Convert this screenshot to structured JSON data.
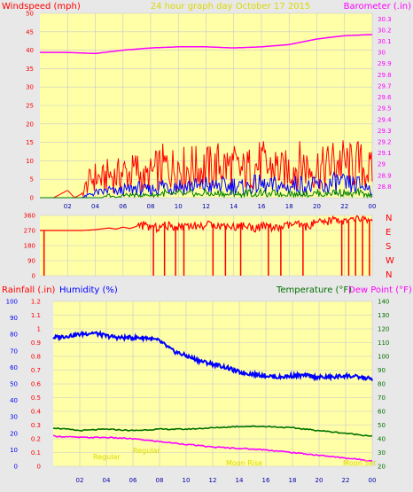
{
  "header": {
    "windspeed_label": "Windspeed (mph)",
    "title": "24 hour graph day   October 17 2015",
    "barometer_label": "Barometer (.in)"
  },
  "colors": {
    "background": "#e8e8e8",
    "plot_bg": "#ffffa8",
    "grid": "#c8c8c8",
    "wind_gust": "#ff0000",
    "wind_avg": "#0000ff",
    "wind_low": "#008000",
    "barometer": "#ff00ff",
    "direction": "#ff0000",
    "humidity": "#0000ff",
    "temperature": "#007000",
    "dewpoint": "#ff00ff",
    "title": "#dcd800"
  },
  "chart_data": [
    {
      "type": "line",
      "xlabel": "",
      "x_ticks": [
        "02",
        "04",
        "06",
        "08",
        "10",
        "12",
        "14",
        "16",
        "18",
        "20",
        "22",
        "00"
      ],
      "y_left_label": "Windspeed (mph)",
      "y_left_lim": [
        0,
        50
      ],
      "y_left_ticks": [
        "0",
        "5",
        "10",
        "15",
        "20",
        "25",
        "30",
        "35",
        "40",
        "45",
        "50"
      ],
      "y_right_label": "Barometer (.in)",
      "y_right_lim": [
        28.7,
        30.35
      ],
      "y_right_ticks": [
        "28.8",
        "28.9",
        "29",
        "29.1",
        "29.2",
        "29.3",
        "29.4",
        "29.5",
        "29.6",
        "29.7",
        "29.8",
        "29.9",
        "30",
        "30.1",
        "30.2",
        "30.3"
      ],
      "series": [
        {
          "name": "Windspeed (mph)",
          "key": "gust",
          "x_hours": [
            0,
            1,
            2,
            2.5,
            3,
            3.5,
            4,
            4.5,
            5,
            5.5,
            6,
            6.5,
            7,
            7.5,
            8,
            8.5,
            9,
            9.5,
            10,
            10.5,
            11,
            11.5,
            12,
            12.5,
            13,
            13.5,
            14,
            14.5,
            15,
            15.5,
            16,
            16.5,
            17,
            17.5,
            18,
            18.5,
            19,
            19.5,
            20,
            20.5,
            21,
            21.5,
            22,
            22.5,
            23,
            23.5,
            24
          ],
          "values": [
            0,
            0,
            2,
            0,
            1,
            6,
            8,
            7,
            9,
            8,
            10,
            9,
            11,
            7,
            9,
            11,
            12,
            11,
            13,
            11,
            12,
            11,
            12,
            11,
            13,
            12,
            12,
            10,
            11,
            12,
            13,
            11,
            12,
            10,
            11,
            12,
            13,
            11,
            12,
            11,
            13,
            14,
            13,
            12,
            13,
            11,
            10
          ]
        },
        {
          "name": "",
          "key": "avg",
          "x_hours": [
            0,
            1,
            2,
            2.5,
            3,
            3.5,
            4,
            4.5,
            5,
            5.5,
            6,
            6.5,
            7,
            7.5,
            8,
            8.5,
            9,
            9.5,
            10,
            10.5,
            11,
            11.5,
            12,
            12.5,
            13,
            13.5,
            14,
            14.5,
            15,
            15.5,
            16,
            16.5,
            17,
            17.5,
            18,
            18.5,
            19,
            19.5,
            20,
            20.5,
            21,
            21.5,
            22,
            22.5,
            23,
            23.5,
            24
          ],
          "values": [
            0,
            0,
            0,
            0,
            0,
            1,
            2,
            2,
            3,
            2,
            3,
            3,
            4,
            3,
            3,
            4,
            5,
            4,
            5,
            4,
            5,
            4,
            5,
            4,
            5,
            4,
            5,
            4,
            4,
            5,
            5,
            4,
            5,
            4,
            4,
            5,
            5,
            4,
            5,
            4,
            5,
            6,
            5,
            5,
            5,
            4,
            4
          ]
        },
        {
          "name": "",
          "key": "low",
          "x_hours": [
            0,
            1,
            2,
            2.5,
            3,
            3.5,
            4,
            4.5,
            5,
            5.5,
            6,
            6.5,
            7,
            7.5,
            8,
            8.5,
            9,
            9.5,
            10,
            10.5,
            11,
            11.5,
            12,
            12.5,
            13,
            13.5,
            14,
            14.5,
            15,
            15.5,
            16,
            16.5,
            17,
            17.5,
            18,
            18.5,
            19,
            19.5,
            20,
            20.5,
            21,
            21.5,
            22,
            22.5,
            23,
            23.5,
            24
          ],
          "values": [
            0,
            0,
            0,
            0,
            0,
            0,
            0,
            0,
            1,
            0,
            1,
            1,
            1,
            1,
            1,
            1,
            2,
            1,
            2,
            1,
            2,
            1,
            2,
            1,
            2,
            1,
            2,
            1,
            2,
            1,
            2,
            1,
            2,
            1,
            2,
            1,
            2,
            1,
            2,
            1,
            2,
            2,
            2,
            1,
            2,
            1,
            1
          ]
        },
        {
          "name": "Barometer (.in)",
          "key": "baro",
          "axis": "right",
          "x_hours": [
            0,
            2,
            4,
            6,
            8,
            10,
            12,
            14,
            16,
            18,
            20,
            22,
            24
          ],
          "values": [
            30.0,
            30.0,
            29.99,
            30.02,
            30.04,
            30.05,
            30.05,
            30.04,
            30.05,
            30.07,
            30.12,
            30.15,
            30.16
          ]
        }
      ]
    },
    {
      "type": "scatter",
      "y_left_ticks": [
        "0",
        "90",
        "180",
        "270",
        "360"
      ],
      "y_lim": [
        0,
        360
      ],
      "y_right_ticks": [
        "N",
        "W",
        "S",
        "E",
        "N"
      ],
      "series": [
        {
          "name": "",
          "x_hours": [
            0,
            0.5,
            1,
            1.5,
            2,
            2.5,
            3,
            3.5,
            4,
            4.5,
            5,
            5.5,
            6,
            6.5,
            7,
            7.5,
            8,
            8.5,
            9,
            9.5,
            10,
            10.5,
            11,
            11.5,
            12,
            12.5,
            13,
            13.5,
            14,
            14.5,
            15,
            15.5,
            16,
            16.5,
            17,
            17.5,
            18,
            18.5,
            19,
            19.5,
            20,
            20.5,
            21,
            21.5,
            22,
            22.5,
            23,
            23.5,
            24
          ],
          "values": [
            270,
            270,
            270,
            270,
            270,
            270,
            270,
            272,
            275,
            280,
            285,
            278,
            290,
            282,
            295,
            300,
            290,
            285,
            300,
            295,
            290,
            305,
            300,
            295,
            300,
            310,
            295,
            300,
            290,
            300,
            295,
            285,
            290,
            300,
            280,
            290,
            300,
            310,
            290,
            300,
            320,
            310,
            330,
            340,
            320,
            330,
            340,
            335,
            330
          ]
        }
      ],
      "drops_to_zero_hours": [
        0.3,
        8.2,
        9.0,
        9.8,
        10.4,
        12.5,
        13.4,
        14.5,
        16.5,
        17.4,
        19.0,
        21.8,
        22.3,
        22.8,
        23.3,
        23.8
      ]
    },
    {
      "type": "line",
      "y_left_label_1": "Rainfall (.in)",
      "y_left_label_2": "Humidity (%)",
      "y_right_label_1": "Temperature (°F)",
      "y_right_label_2": "Dew Point (°F)",
      "x_ticks": [
        "02",
        "04",
        "06",
        "08",
        "10",
        "12",
        "14",
        "16",
        "18",
        "20",
        "22",
        "00"
      ],
      "y_humidity_ticks": [
        "0",
        "10",
        "20",
        "30",
        "40",
        "50",
        "60",
        "70",
        "80",
        "90",
        "100"
      ],
      "y_rain_ticks": [
        "0",
        "0.1",
        "0.2",
        "0.3",
        "0.4",
        "0.5",
        "0.6",
        "0.7",
        "0.8",
        "0.9",
        "1",
        "1.1",
        "1.2"
      ],
      "y_rain_lim": [
        0,
        1.2
      ],
      "y_temp_ticks": [
        "20",
        "30",
        "40",
        "50",
        "60",
        "70",
        "80",
        "90",
        "100",
        "110",
        "120",
        "130",
        "140"
      ],
      "y_temp_lim": [
        20,
        140
      ],
      "annotations": [
        "Regular",
        "Regular",
        "Moon Rise",
        "Moon Set"
      ],
      "series": [
        {
          "name": "Humidity (%)",
          "key": "humidity",
          "x_hours": [
            0,
            1,
            2,
            3,
            4,
            5,
            6,
            7,
            8,
            9,
            10,
            11,
            12,
            13,
            14,
            15,
            16,
            17,
            18,
            19,
            20,
            21,
            22,
            23,
            24
          ],
          "values": [
            78,
            79,
            80,
            81,
            79,
            78,
            78,
            78,
            76,
            70,
            67,
            64,
            62,
            60,
            57,
            56,
            55,
            54,
            55,
            55,
            54,
            54,
            55,
            54,
            53
          ]
        },
        {
          "name": "Temperature (°F)",
          "key": "temp",
          "x_hours": [
            0,
            2,
            4,
            6,
            8,
            10,
            12,
            14,
            16,
            18,
            20,
            22,
            24
          ],
          "values": [
            48,
            46,
            47,
            46,
            47,
            47,
            48,
            49,
            49,
            48,
            46,
            44,
            42
          ]
        },
        {
          "name": "Dew Point (°F)",
          "key": "dew",
          "x_hours": [
            0,
            2,
            4,
            6,
            8,
            10,
            12,
            14,
            16,
            18,
            20,
            22,
            24
          ],
          "values": [
            42,
            41,
            41,
            40,
            38,
            36,
            34,
            33,
            32,
            30,
            28,
            26,
            24
          ]
        }
      ]
    }
  ]
}
